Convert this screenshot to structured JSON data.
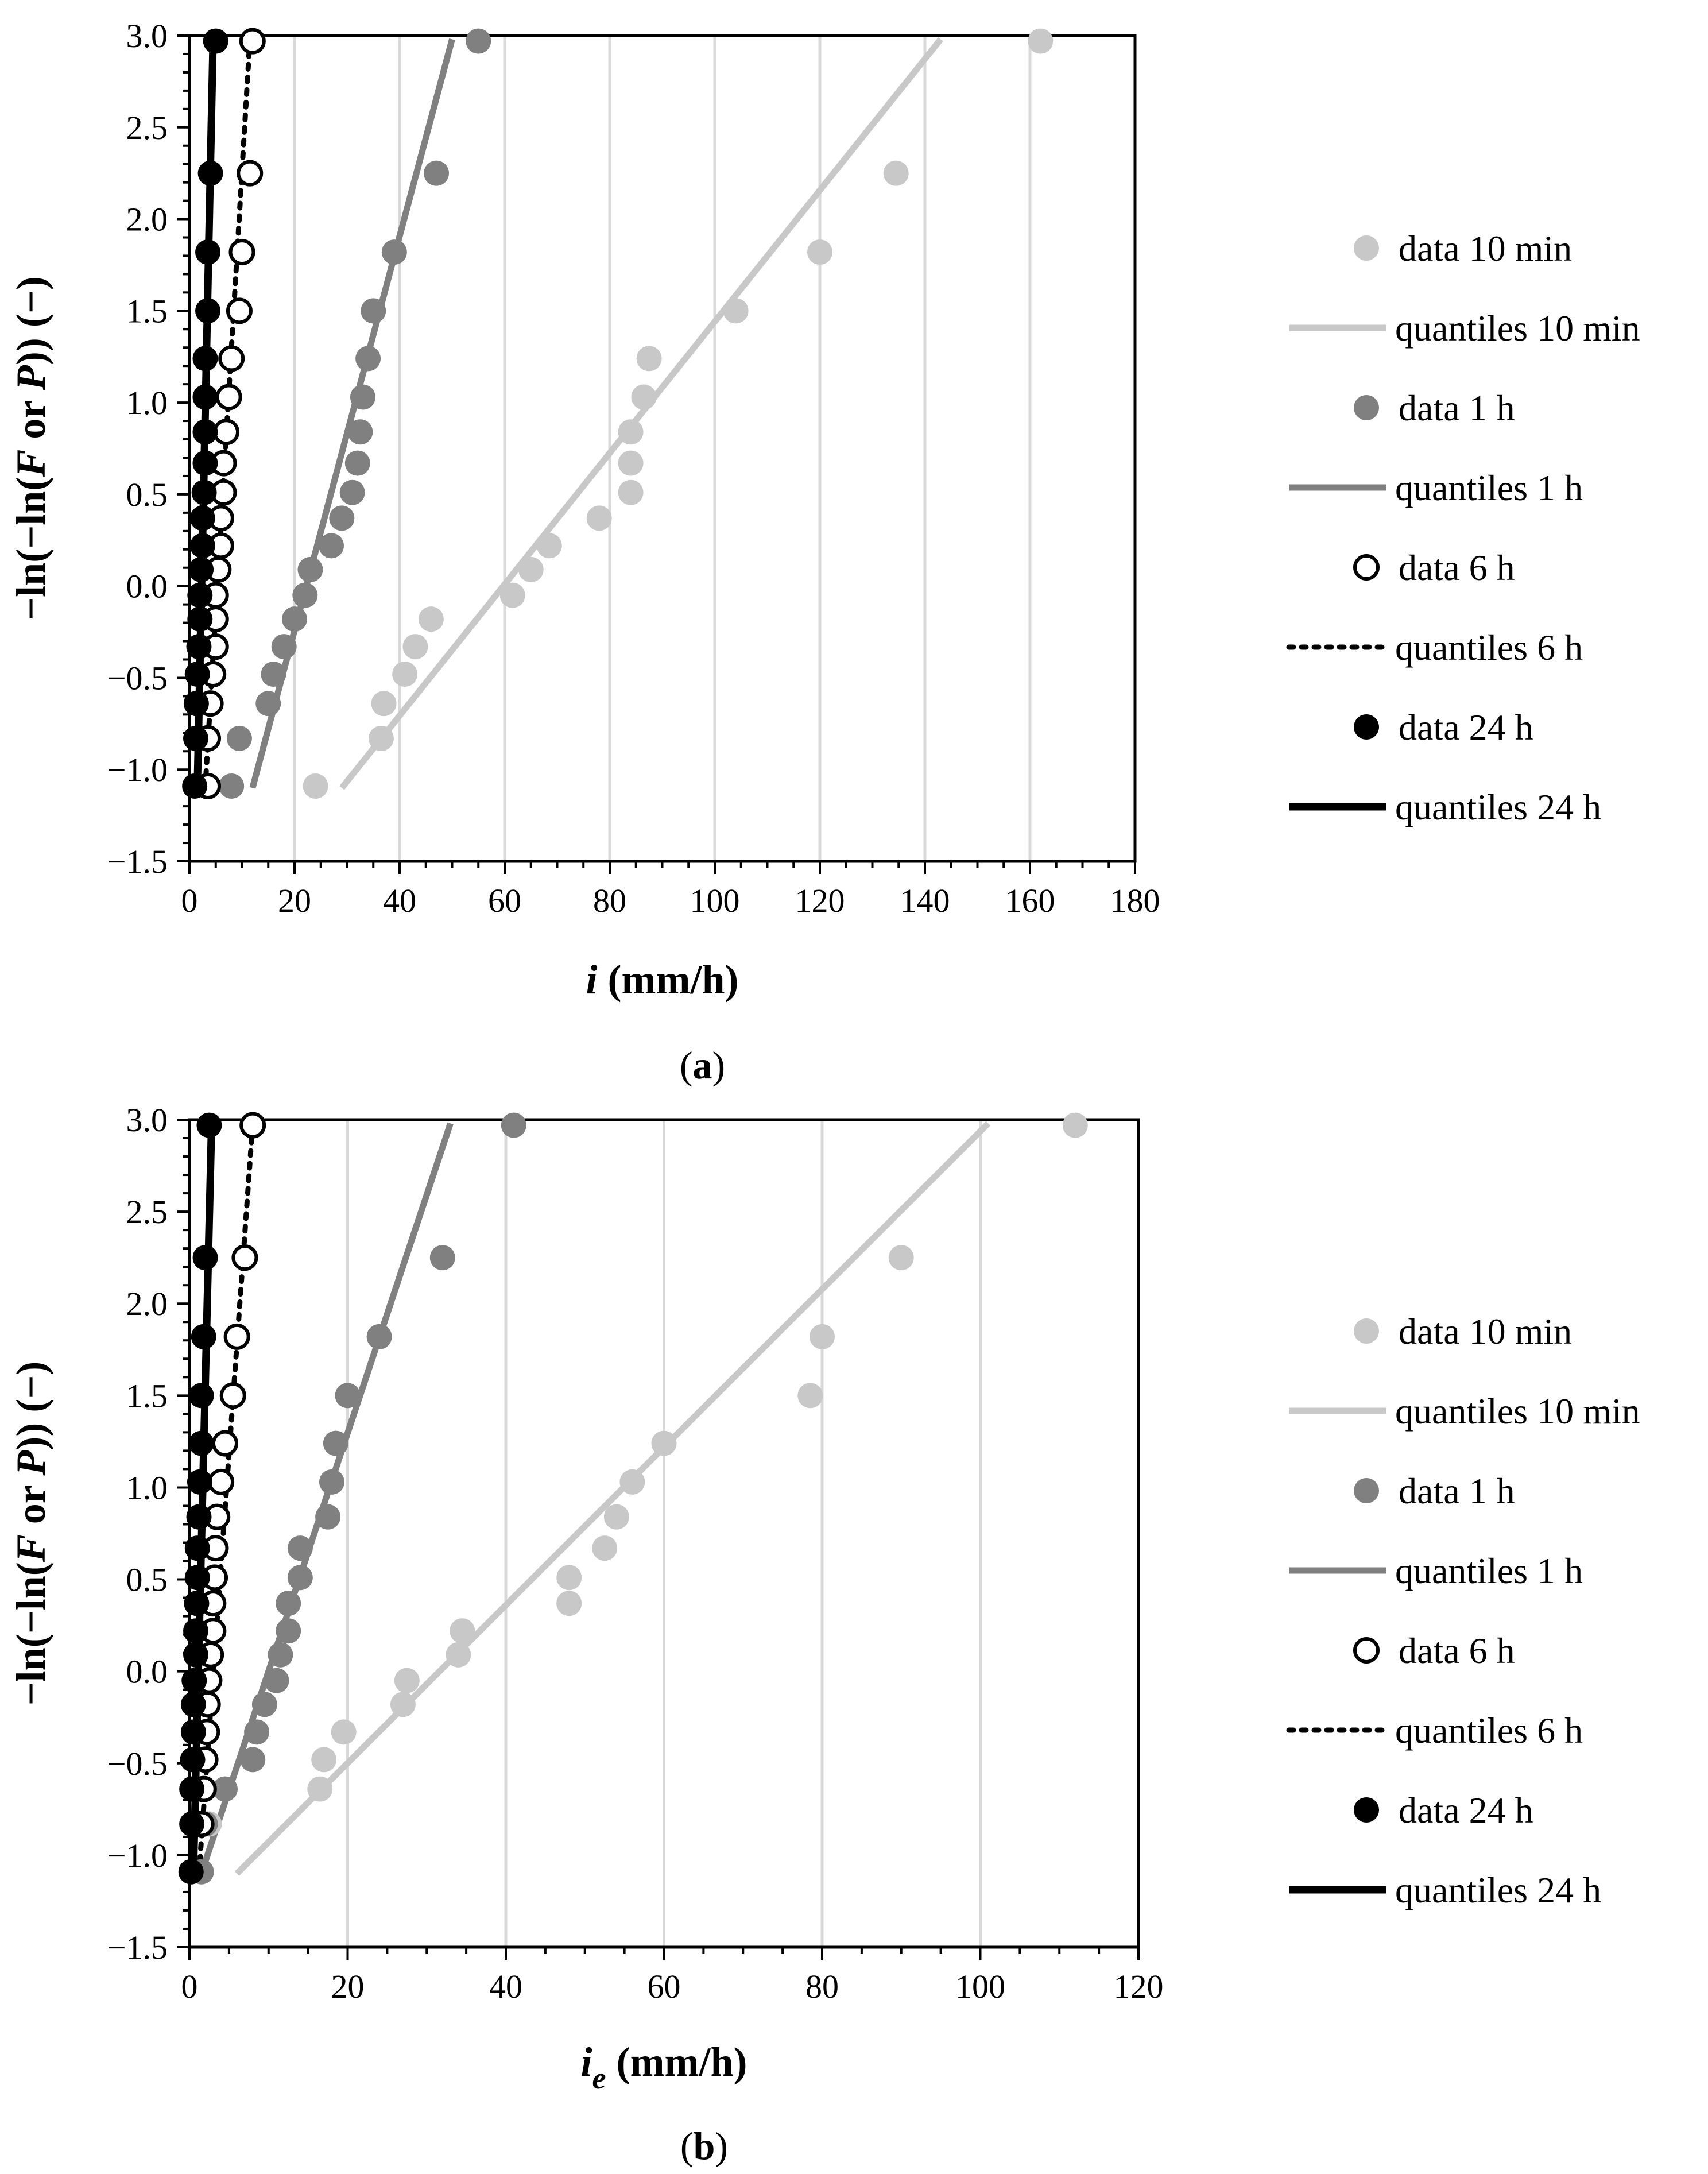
{
  "colors": {
    "10min": "#c8c8c8",
    "1h": "#808080",
    "6h": "#000000",
    "24h": "#000000",
    "grid": "#d9d9d9"
  },
  "legend": [
    {
      "label": "data 10 min",
      "kind": "marker",
      "series": "10min"
    },
    {
      "label": "quantiles 10 min",
      "kind": "line",
      "series": "10min"
    },
    {
      "label": "data 1 h",
      "kind": "marker",
      "series": "1h"
    },
    {
      "label": "quantiles 1 h",
      "kind": "line",
      "series": "1h"
    },
    {
      "label": "data 6 h",
      "kind": "marker",
      "series": "6h"
    },
    {
      "label": "quantiles 6 h",
      "kind": "line",
      "series": "6h"
    },
    {
      "label": "data 24 h",
      "kind": "marker",
      "series": "24h"
    },
    {
      "label": "quantiles 24 h",
      "kind": "line",
      "series": "24h"
    }
  ],
  "chart_data": [
    {
      "type": "scatter",
      "panel_label_open": "(",
      "panel_label_letter": "a",
      "panel_label_close": ")",
      "xlabel_var": "i",
      "xlabel_sub": "",
      "xlabel_unit": " (mm/h)",
      "ylabel": "−ln(−ln(F or P)) (−)",
      "ylabel_parts": [
        "−ln(−ln(",
        "F",
        " or ",
        "P",
        ")) (−)"
      ],
      "xlim": [
        0,
        180
      ],
      "ylim": [
        -1.5,
        3.0
      ],
      "xticks": [
        0,
        20,
        40,
        60,
        80,
        100,
        120,
        140,
        160,
        180
      ],
      "yticks": [
        -1.5,
        -1.0,
        -0.5,
        0.0,
        0.5,
        1.0,
        1.5,
        2.0,
        2.5,
        3.0
      ],
      "ytick_labels": [
        "−1.5",
        "−1.0",
        "−0.5",
        "0.0",
        "0.5",
        "1.0",
        "1.5",
        "2.0",
        "2.5",
        "3.0"
      ],
      "grid": true,
      "series": [
        {
          "name": "data 10 min",
          "key": "10min",
          "style": "filled",
          "points": [
            [
              24,
              -1.09
            ],
            [
              36.5,
              -0.83
            ],
            [
              37,
              -0.64
            ],
            [
              41,
              -0.48
            ],
            [
              43,
              -0.33
            ],
            [
              46,
              -0.18
            ],
            [
              61.5,
              -0.05
            ],
            [
              65,
              0.09
            ],
            [
              68.5,
              0.22
            ],
            [
              78,
              0.37
            ],
            [
              84,
              0.51
            ],
            [
              84,
              0.67
            ],
            [
              84,
              0.84
            ],
            [
              86.5,
              1.03
            ],
            [
              87.5,
              1.24
            ],
            [
              104,
              1.5
            ],
            [
              120,
              1.82
            ],
            [
              134.5,
              2.25
            ],
            [
              162,
              2.97
            ]
          ],
          "line": [
            [
              29,
              -1.1
            ],
            [
              143,
              2.98
            ]
          ]
        },
        {
          "name": "data 1 h",
          "key": "1h",
          "style": "filled",
          "points": [
            [
              8,
              -1.09
            ],
            [
              9.5,
              -0.83
            ],
            [
              15,
              -0.64
            ],
            [
              16,
              -0.48
            ],
            [
              18,
              -0.33
            ],
            [
              20,
              -0.18
            ],
            [
              22,
              -0.05
            ],
            [
              23,
              0.09
            ],
            [
              27,
              0.22
            ],
            [
              29,
              0.37
            ],
            [
              31,
              0.51
            ],
            [
              32,
              0.67
            ],
            [
              32.5,
              0.84
            ],
            [
              33,
              1.03
            ],
            [
              34,
              1.24
            ],
            [
              35,
              1.5
            ],
            [
              39,
              1.82
            ],
            [
              47,
              2.25
            ],
            [
              55,
              2.97
            ]
          ],
          "line": [
            [
              12,
              -1.1
            ],
            [
              50,
              2.98
            ]
          ]
        },
        {
          "name": "data 6 h",
          "key": "6h",
          "style": "open",
          "points": [
            [
              3.5,
              -1.09
            ],
            [
              3.5,
              -0.83
            ],
            [
              4,
              -0.64
            ],
            [
              4.5,
              -0.48
            ],
            [
              5,
              -0.33
            ],
            [
              5,
              -0.18
            ],
            [
              5,
              -0.05
            ],
            [
              5.5,
              0.09
            ],
            [
              6,
              0.22
            ],
            [
              6,
              0.37
            ],
            [
              6.5,
              0.51
            ],
            [
              6.5,
              0.67
            ],
            [
              7,
              0.84
            ],
            [
              7.5,
              1.03
            ],
            [
              8,
              1.24
            ],
            [
              9.5,
              1.5
            ],
            [
              10,
              1.82
            ],
            [
              11.5,
              2.25
            ],
            [
              12,
              2.97
            ]
          ],
          "line": [
            [
              3,
              -1.1
            ],
            [
              11.5,
              2.98
            ]
          ]
        },
        {
          "name": "data 24 h",
          "key": "24h",
          "style": "filled",
          "points": [
            [
              1,
              -1.09
            ],
            [
              1.2,
              -0.83
            ],
            [
              1.3,
              -0.64
            ],
            [
              1.5,
              -0.48
            ],
            [
              1.8,
              -0.33
            ],
            [
              2,
              -0.18
            ],
            [
              2,
              -0.05
            ],
            [
              2.2,
              0.09
            ],
            [
              2.5,
              0.22
            ],
            [
              2.5,
              0.37
            ],
            [
              2.8,
              0.51
            ],
            [
              3,
              0.67
            ],
            [
              3,
              0.84
            ],
            [
              3,
              1.03
            ],
            [
              3,
              1.24
            ],
            [
              3.5,
              1.5
            ],
            [
              3.5,
              1.82
            ],
            [
              4,
              2.25
            ],
            [
              5,
              2.97
            ]
          ],
          "line": [
            [
              1.5,
              -1.1
            ],
            [
              4.5,
              2.98
            ]
          ]
        }
      ]
    },
    {
      "type": "scatter",
      "panel_label_open": "(",
      "panel_label_letter": "b",
      "panel_label_close": ")",
      "xlabel_var": "i",
      "xlabel_sub": "e",
      "xlabel_unit": " (mm/h)",
      "ylabel": "−ln(−ln(F or P)) (−)",
      "ylabel_parts": [
        "−ln(−ln(",
        "F",
        " or ",
        "P",
        ")) (−)"
      ],
      "xlim": [
        0,
        120
      ],
      "ylim": [
        -1.5,
        3.0
      ],
      "xticks": [
        0,
        20,
        40,
        60,
        80,
        100,
        120
      ],
      "yticks": [
        -1.5,
        -1.0,
        -0.5,
        0.0,
        0.5,
        1.0,
        1.5,
        2.0,
        2.5,
        3.0
      ],
      "ytick_labels": [
        "−1.5",
        "−1.0",
        "−0.5",
        "0.0",
        "0.5",
        "1.0",
        "1.5",
        "2.0",
        "2.5",
        "3.0"
      ],
      "grid": true,
      "series": [
        {
          "name": "data 10 min",
          "key": "10min",
          "style": "filled",
          "points": [
            [
              2.5,
              -0.83
            ],
            [
              16.5,
              -0.64
            ],
            [
              17,
              -0.48
            ],
            [
              19.5,
              -0.33
            ],
            [
              27,
              -0.18
            ],
            [
              27.5,
              -0.05
            ],
            [
              34,
              0.09
            ],
            [
              34.5,
              0.22
            ],
            [
              48,
              0.37
            ],
            [
              48,
              0.51
            ],
            [
              52.5,
              0.67
            ],
            [
              54,
              0.84
            ],
            [
              56,
              1.03
            ],
            [
              60,
              1.24
            ],
            [
              78.5,
              1.5
            ],
            [
              80,
              1.82
            ],
            [
              90,
              2.25
            ],
            [
              112,
              2.97
            ]
          ],
          "line": [
            [
              6,
              -1.1
            ],
            [
              101,
              2.98
            ]
          ]
        },
        {
          "name": "data 1 h",
          "key": "1h",
          "style": "filled",
          "points": [
            [
              1.5,
              -1.09
            ],
            [
              2,
              -0.83
            ],
            [
              4.5,
              -0.64
            ],
            [
              8,
              -0.48
            ],
            [
              8.5,
              -0.33
            ],
            [
              9.5,
              -0.18
            ],
            [
              11,
              -0.05
            ],
            [
              11.5,
              0.09
            ],
            [
              12.5,
              0.22
            ],
            [
              12.5,
              0.37
            ],
            [
              14,
              0.51
            ],
            [
              14,
              0.67
            ],
            [
              17.5,
              0.84
            ],
            [
              18,
              1.03
            ],
            [
              18.5,
              1.24
            ],
            [
              20,
              1.5
            ],
            [
              24,
              1.82
            ],
            [
              32,
              2.25
            ],
            [
              41,
              2.97
            ]
          ],
          "line": [
            [
              1.5,
              -1.1
            ],
            [
              33,
              2.98
            ]
          ]
        },
        {
          "name": "data 6 h",
          "key": "6h",
          "style": "open",
          "points": [
            [
              1.5,
              -0.83
            ],
            [
              1.8,
              -0.64
            ],
            [
              2,
              -0.48
            ],
            [
              2.2,
              -0.33
            ],
            [
              2.3,
              -0.18
            ],
            [
              2.5,
              -0.05
            ],
            [
              2.7,
              0.09
            ],
            [
              3,
              0.22
            ],
            [
              3,
              0.37
            ],
            [
              3.2,
              0.51
            ],
            [
              3.3,
              0.67
            ],
            [
              3.5,
              0.84
            ],
            [
              4,
              1.03
            ],
            [
              4.5,
              1.24
            ],
            [
              5.5,
              1.5
            ],
            [
              6,
              1.82
            ],
            [
              7,
              2.25
            ],
            [
              8,
              2.97
            ]
          ],
          "line": [
            [
              1.2,
              -1.1
            ],
            [
              8,
              2.98
            ]
          ]
        },
        {
          "name": "data 24 h",
          "key": "24h",
          "style": "filled",
          "points": [
            [
              0.2,
              -1.09
            ],
            [
              0.3,
              -0.83
            ],
            [
              0.3,
              -0.64
            ],
            [
              0.4,
              -0.48
            ],
            [
              0.5,
              -0.33
            ],
            [
              0.5,
              -0.18
            ],
            [
              0.6,
              -0.05
            ],
            [
              0.8,
              0.09
            ],
            [
              0.8,
              0.22
            ],
            [
              0.9,
              0.37
            ],
            [
              1,
              0.51
            ],
            [
              1,
              0.67
            ],
            [
              1.2,
              0.84
            ],
            [
              1.3,
              1.03
            ],
            [
              1.5,
              1.24
            ],
            [
              1.5,
              1.5
            ],
            [
              1.8,
              1.82
            ],
            [
              2,
              2.25
            ],
            [
              2.5,
              2.97
            ]
          ],
          "line": [
            [
              0.5,
              -1.1
            ],
            [
              2.8,
              2.98
            ]
          ]
        }
      ]
    }
  ]
}
